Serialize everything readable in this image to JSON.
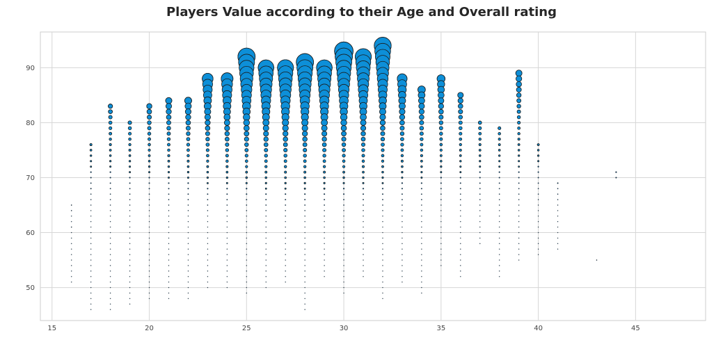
{
  "chart_data": {
    "type": "scatter",
    "title": "Players Value according to their Age and Overall rating",
    "xlabel": "",
    "ylabel": "",
    "xlim": [
      14.4,
      48.6
    ],
    "ylim": [
      44,
      96.5
    ],
    "xticks": [
      15,
      20,
      25,
      30,
      35,
      40,
      45
    ],
    "yticks": [
      50,
      60,
      70,
      80,
      90
    ],
    "grid": true,
    "marker_color": "#0d8fd8",
    "marker_edge_color": "#1a1a1a",
    "size_encoding": "player value",
    "notable_points": [
      {
        "age": 16,
        "overall": 65
      },
      {
        "age": 16,
        "overall": 64
      },
      {
        "age": 16,
        "overall": 61
      },
      {
        "age": 17,
        "overall": 76
      },
      {
        "age": 17,
        "overall": 68
      },
      {
        "age": 18,
        "overall": 83
      },
      {
        "age": 18,
        "overall": 82
      },
      {
        "age": 18,
        "overall": 78
      },
      {
        "age": 19,
        "overall": 80
      },
      {
        "age": 20,
        "overall": 83
      },
      {
        "age": 21,
        "overall": 84
      },
      {
        "age": 22,
        "overall": 84
      },
      {
        "age": 23,
        "overall": 88
      },
      {
        "age": 24,
        "overall": 88
      },
      {
        "age": 25,
        "overall": 92
      },
      {
        "age": 26,
        "overall": 90
      },
      {
        "age": 27,
        "overall": 90
      },
      {
        "age": 28,
        "overall": 91
      },
      {
        "age": 29,
        "overall": 90
      },
      {
        "age": 30,
        "overall": 93
      },
      {
        "age": 30,
        "overall": 92
      },
      {
        "age": 31,
        "overall": 92
      },
      {
        "age": 32,
        "overall": 94
      },
      {
        "age": 33,
        "overall": 88
      },
      {
        "age": 34,
        "overall": 86
      },
      {
        "age": 35,
        "overall": 88
      },
      {
        "age": 36,
        "overall": 85
      },
      {
        "age": 37,
        "overall": 80
      },
      {
        "age": 38,
        "overall": 79
      },
      {
        "age": 39,
        "overall": 89
      },
      {
        "age": 40,
        "overall": 76
      },
      {
        "age": 41,
        "overall": 69
      },
      {
        "age": 43,
        "overall": 55
      },
      {
        "age": 44,
        "overall": 71
      },
      {
        "age": 44,
        "overall": 70
      }
    ],
    "age_groups": [
      {
        "age": 16,
        "min": 51,
        "max": 65
      },
      {
        "age": 17,
        "min": 46,
        "max": 76
      },
      {
        "age": 18,
        "min": 46,
        "max": 83
      },
      {
        "age": 19,
        "min": 47,
        "max": 80
      },
      {
        "age": 20,
        "min": 48,
        "max": 83
      },
      {
        "age": 21,
        "min": 48,
        "max": 84
      },
      {
        "age": 22,
        "min": 48,
        "max": 84
      },
      {
        "age": 23,
        "min": 50,
        "max": 88
      },
      {
        "age": 24,
        "min": 50,
        "max": 88
      },
      {
        "age": 25,
        "min": 49,
        "max": 92
      },
      {
        "age": 26,
        "min": 50,
        "max": 90
      },
      {
        "age": 27,
        "min": 51,
        "max": 90
      },
      {
        "age": 28,
        "min": 46,
        "max": 91
      },
      {
        "age": 29,
        "min": 52,
        "max": 90
      },
      {
        "age": 30,
        "min": 49,
        "max": 93
      },
      {
        "age": 31,
        "min": 52,
        "max": 92
      },
      {
        "age": 32,
        "min": 48,
        "max": 94
      },
      {
        "age": 33,
        "min": 51,
        "max": 88
      },
      {
        "age": 34,
        "min": 49,
        "max": 86
      },
      {
        "age": 35,
        "min": 54,
        "max": 88
      },
      {
        "age": 36,
        "min": 52,
        "max": 85
      },
      {
        "age": 37,
        "min": 58,
        "max": 80
      },
      {
        "age": 38,
        "min": 52,
        "max": 79
      },
      {
        "age": 39,
        "min": 55,
        "max": 89
      },
      {
        "age": 40,
        "min": 56,
        "max": 76
      },
      {
        "age": 41,
        "min": 57,
        "max": 69
      },
      {
        "age": 43,
        "min": 55,
        "max": 55
      },
      {
        "age": 44,
        "min": 70,
        "max": 71
      }
    ]
  }
}
